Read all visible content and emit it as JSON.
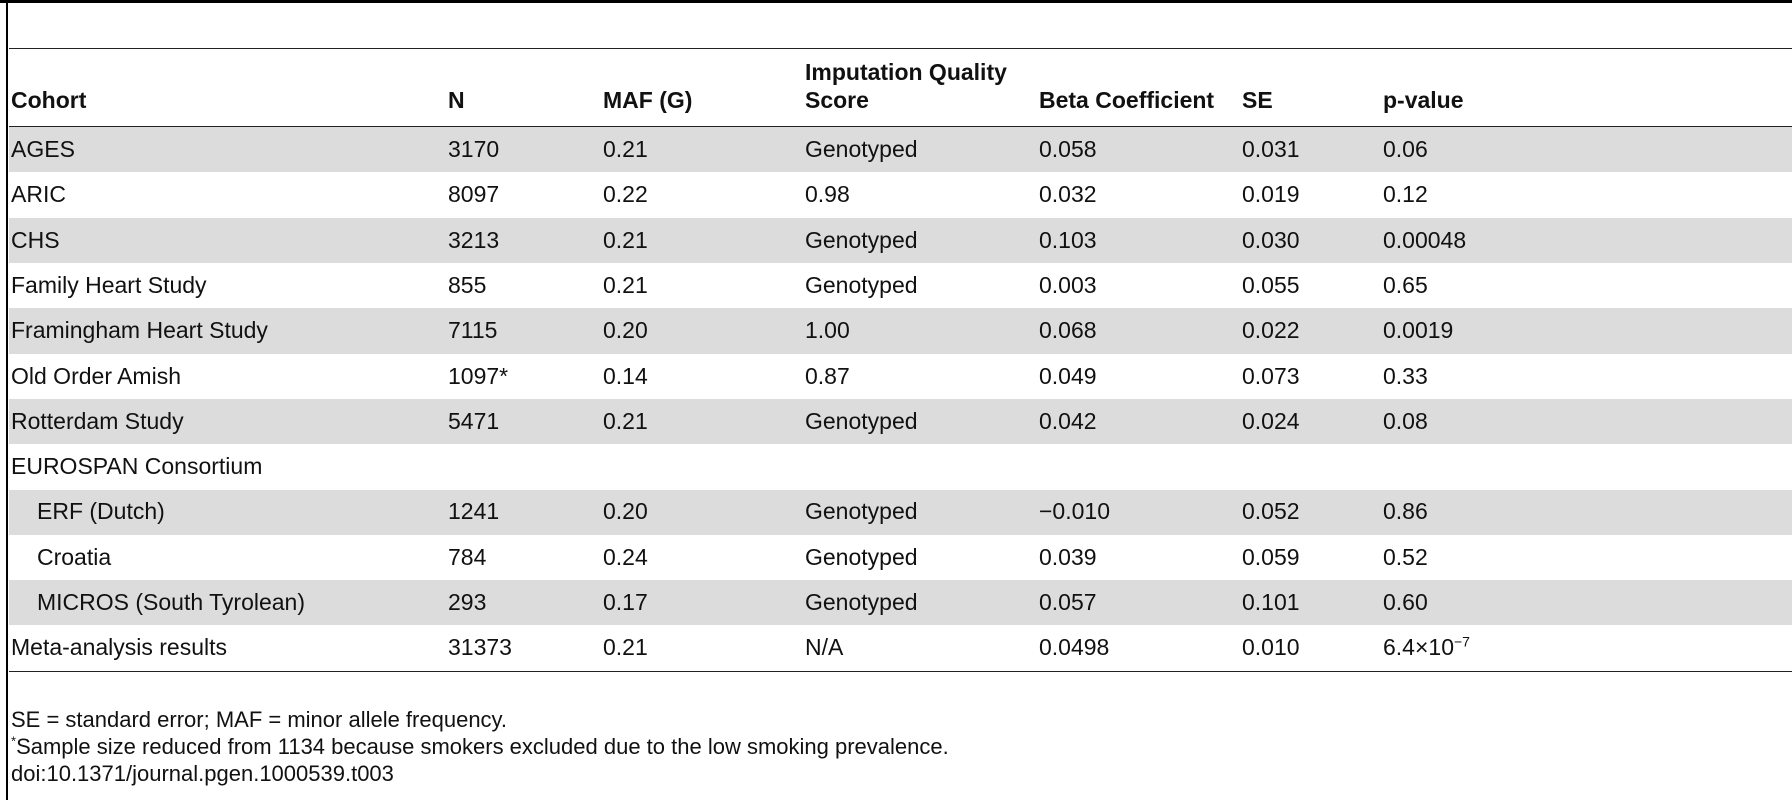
{
  "table": {
    "columns": [
      "Cohort",
      "N",
      "MAF (G)",
      "Imputation Quality Score",
      "Beta Coefficient",
      "SE",
      "p-value"
    ],
    "rows": [
      {
        "cohort": "AGES",
        "n": "3170",
        "maf": "0.21",
        "iqs": "Genotyped",
        "beta": "0.058",
        "se": "0.031",
        "p": "0.06",
        "indent": false,
        "shaded": true
      },
      {
        "cohort": "ARIC",
        "n": "8097",
        "maf": "0.22",
        "iqs": "0.98",
        "beta": "0.032",
        "se": "0.019",
        "p": "0.12",
        "indent": false,
        "shaded": false
      },
      {
        "cohort": "CHS",
        "n": "3213",
        "maf": "0.21",
        "iqs": "Genotyped",
        "beta": "0.103",
        "se": "0.030",
        "p": "0.00048",
        "indent": false,
        "shaded": true
      },
      {
        "cohort": "Family Heart Study",
        "n": "855",
        "maf": "0.21",
        "iqs": "Genotyped",
        "beta": "0.003",
        "se": "0.055",
        "p": "0.65",
        "indent": false,
        "shaded": false
      },
      {
        "cohort": "Framingham Heart Study",
        "n": "7115",
        "maf": "0.20",
        "iqs": "1.00",
        "beta": "0.068",
        "se": "0.022",
        "p": "0.0019",
        "indent": false,
        "shaded": true
      },
      {
        "cohort": "Old Order Amish",
        "n": "1097*",
        "maf": "0.14",
        "iqs": "0.87",
        "beta": "0.049",
        "se": "0.073",
        "p": "0.33",
        "indent": false,
        "shaded": false
      },
      {
        "cohort": "Rotterdam Study",
        "n": "5471",
        "maf": "0.21",
        "iqs": "Genotyped",
        "beta": "0.042",
        "se": "0.024",
        "p": "0.08",
        "indent": false,
        "shaded": true
      },
      {
        "cohort": "EUROSPAN Consortium",
        "n": "",
        "maf": "",
        "iqs": "",
        "beta": "",
        "se": "",
        "p": "",
        "indent": false,
        "shaded": false
      },
      {
        "cohort": "ERF (Dutch)",
        "n": "1241",
        "maf": "0.20",
        "iqs": "Genotyped",
        "beta": "−0.010",
        "se": "0.052",
        "p": "0.86",
        "indent": true,
        "shaded": true
      },
      {
        "cohort": "Croatia",
        "n": "784",
        "maf": "0.24",
        "iqs": "Genotyped",
        "beta": "0.039",
        "se": "0.059",
        "p": "0.52",
        "indent": true,
        "shaded": false
      },
      {
        "cohort": "MICROS (South Tyrolean)",
        "n": "293",
        "maf": "0.17",
        "iqs": "Genotyped",
        "beta": "0.057",
        "se": "0.101",
        "p": "0.60",
        "indent": true,
        "shaded": true
      },
      {
        "cohort": "Meta-analysis results",
        "n": "31373",
        "maf": "0.21",
        "iqs": "N/A",
        "beta": "0.0498",
        "se": "0.010",
        "p": "6.4×10",
        "p_exp": "−7",
        "indent": false,
        "shaded": false
      }
    ]
  },
  "notes": {
    "abbreviations": "SE = standard error; MAF = minor allele frequency.",
    "footnote_marker": "*",
    "footnote": "Sample size reduced from 1134 because smokers excluded due to the low smoking prevalence.",
    "doi": "doi:10.1371/journal.pgen.1000539.t003"
  }
}
